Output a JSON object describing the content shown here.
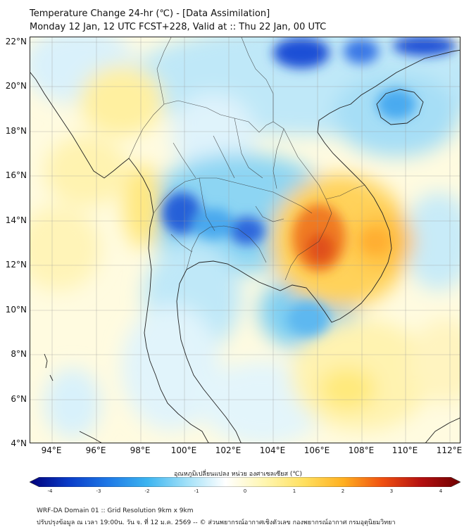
{
  "title": {
    "line1": "Temperature Change 24-hr (℃) - [Data Assimilation]",
    "line2": "Monday 12 Jan, 12 UTC FCST+228, Valid at :: Thu 22 Jan, 00 UTC"
  },
  "axes": {
    "lat_labels": [
      "22°N",
      "20°N",
      "18°N",
      "16°N",
      "14°N",
      "12°N",
      "10°N",
      "8°N",
      "6°N",
      "4°N"
    ],
    "lon_labels": [
      "94°E",
      "96°E",
      "98°E",
      "100°E",
      "102°E",
      "104°E",
      "106°E",
      "108°E",
      "110°E",
      "112°E"
    ],
    "lat_range": [
      4,
      22.2
    ],
    "lon_range": [
      93,
      112.5
    ]
  },
  "colorbar": {
    "title": "อุณหภูมิเปลี่ยนแปลง หน่วย องศาเซลเซียส (℃)",
    "ticks": [
      "-4",
      "-3",
      "-2",
      "-1",
      "0",
      "1",
      "2",
      "3",
      "4"
    ],
    "range": [
      -4,
      4
    ],
    "colors": [
      "#00007a",
      "#0a3cc8",
      "#1e78e6",
      "#3cb4f0",
      "#a0e0f8",
      "#ffffff",
      "#fff6b0",
      "#ffe060",
      "#ffb020",
      "#f05010",
      "#b41010",
      "#6e0000"
    ]
  },
  "footer": {
    "line1": "WRF-DA Domain 01 :: Grid Resolution 9km x 9km",
    "line2": "ปรับปรุงข้อมูล ณ เวลา 19:00น. วัน จ. ที่ 12 ม.ค. 2569 -- © ส่วนพยากรณ์อากาศเชิงตัวเลข กองพยากรณ์อากาศ กรมอุตุนิยมวิทยา"
  }
}
